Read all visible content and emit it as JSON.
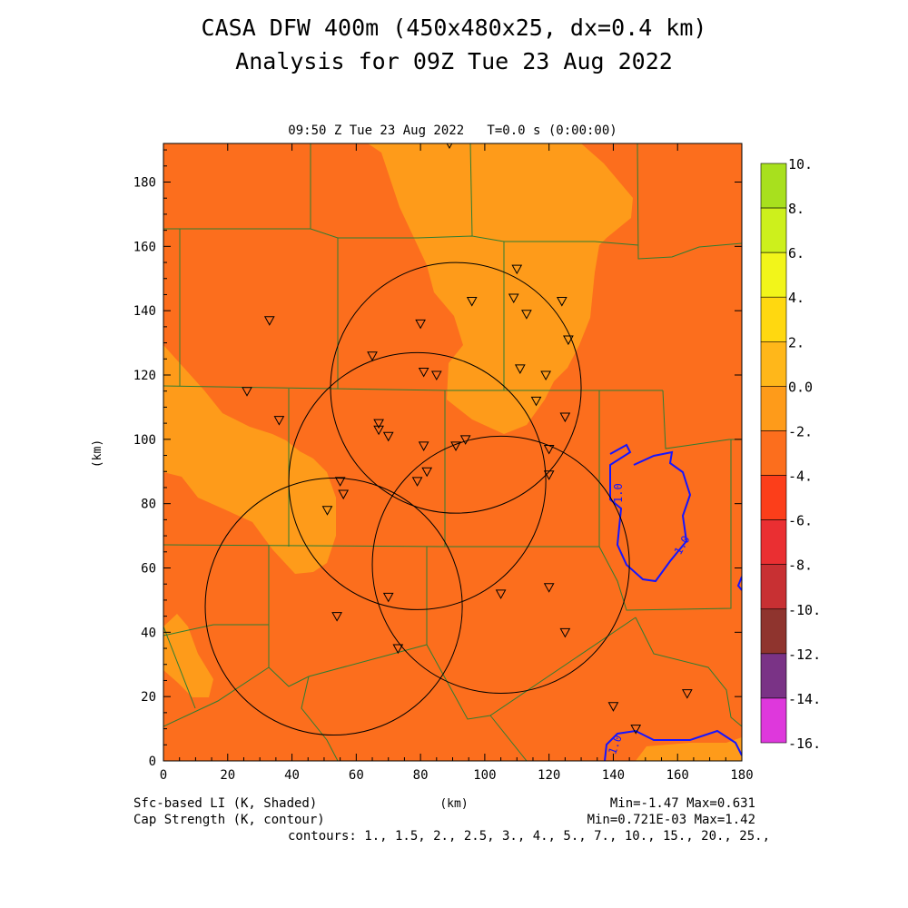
{
  "header": {
    "title_line1": "CASA DFW 400m (450x480x25, dx=0.4 km)",
    "title_line2": "Analysis for 09Z Tue 23 Aug 2022",
    "plot_title": "09:50 Z Tue 23 Aug 2022   T=0.0 s (0:00:00)"
  },
  "axes": {
    "x_label": "(km)",
    "y_label": "(km)",
    "x_range": [
      0,
      180
    ],
    "y_range": [
      0,
      192
    ],
    "x_ticks": [
      "0",
      "20",
      "40",
      "60",
      "80",
      "100",
      "120",
      "140",
      "160",
      "180"
    ],
    "y_ticks": [
      "0",
      "20",
      "40",
      "60",
      "80",
      "100",
      "120",
      "140",
      "160",
      "180"
    ]
  },
  "colorbar": {
    "labels": [
      "10.",
      "8.",
      "6.",
      "4.",
      "2.",
      "0.0",
      "-2.",
      "-4.",
      "-6.",
      "-8.",
      "-10.",
      "-12.",
      "-14.",
      "-16."
    ],
    "colors": [
      "#a8e01e",
      "#cdf01c",
      "#f2f51a",
      "#ffd810",
      "#ffb71a",
      "#fe9b1a",
      "#fc6e1d",
      "#fc3e1a",
      "#ea2f32",
      "#c83033",
      "#8f342e",
      "#7a3386",
      "#b437ab",
      "#de38dc"
    ]
  },
  "footer": {
    "shaded_label": "Sfc-based LI (K, Shaded)",
    "contour_label": "Cap Strength (K, contour)",
    "xunit": "(km)",
    "minmax_shaded": "Min=-1.47 Max=0.631",
    "minmax_contour": "Min=0.721E-03 Max=1.42",
    "contours": "contours: 1., 1.5, 2., 2.5, 3., 4., 5., 7., 10., 15., 20., 25.,"
  },
  "map": {
    "colors": {
      "field_main": "#fc6e1d",
      "field_pos": "#fe9b1a",
      "county_lines": "#2e7d32",
      "contour": "#1515ff",
      "rings": "#000000"
    },
    "contour_labels": [
      "1.0",
      "1.0",
      "1.0"
    ],
    "radars": [
      {
        "name": "radar-ring",
        "x": 91,
        "y": 116,
        "r": 39
      },
      {
        "name": "radar-ring",
        "x": 79,
        "y": 87,
        "r": 40
      },
      {
        "name": "radar-ring",
        "x": 105,
        "y": 61,
        "r": 40
      },
      {
        "name": "radar-ring",
        "x": 53,
        "y": 48,
        "r": 40
      }
    ],
    "stations": [
      [
        89,
        192
      ],
      [
        110,
        153
      ],
      [
        96,
        143
      ],
      [
        109,
        144
      ],
      [
        124,
        143
      ],
      [
        113,
        139
      ],
      [
        80,
        136
      ],
      [
        33,
        137
      ],
      [
        65,
        126
      ],
      [
        126,
        131
      ],
      [
        81,
        121
      ],
      [
        85,
        120
      ],
      [
        111,
        122
      ],
      [
        119,
        120
      ],
      [
        26,
        115
      ],
      [
        116,
        112
      ],
      [
        125,
        107
      ],
      [
        36,
        106
      ],
      [
        67,
        105
      ],
      [
        67,
        103
      ],
      [
        70,
        101
      ],
      [
        81,
        98
      ],
      [
        91,
        98
      ],
      [
        94,
        100
      ],
      [
        120,
        97
      ],
      [
        55,
        87
      ],
      [
        56,
        83
      ],
      [
        79,
        87
      ],
      [
        82,
        90
      ],
      [
        120,
        89
      ],
      [
        51,
        78
      ],
      [
        70,
        51
      ],
      [
        105,
        52
      ],
      [
        120,
        54
      ],
      [
        54,
        45
      ],
      [
        125,
        40
      ],
      [
        73,
        35
      ],
      [
        140,
        17
      ],
      [
        163,
        21
      ],
      [
        147,
        10
      ]
    ]
  }
}
